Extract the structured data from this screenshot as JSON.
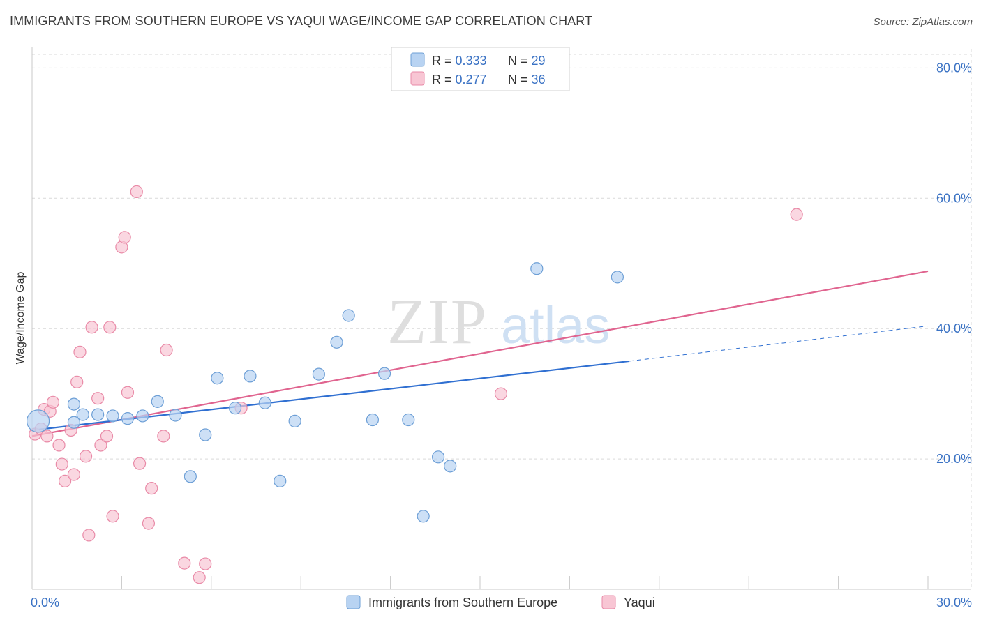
{
  "header": {
    "title": "IMMIGRANTS FROM SOUTHERN EUROPE VS YAQUI WAGE/INCOME GAP CORRELATION CHART",
    "source": "Source: ZipAtlas.com"
  },
  "watermark": {
    "zip": "ZIP",
    "atlas": "atlas"
  },
  "colors": {
    "blue_fill": "#b8d3f2",
    "blue_stroke": "#6d9fd6",
    "blue_line": "#2f6fd1",
    "pink_fill": "#f8c6d4",
    "pink_stroke": "#e98aa7",
    "pink_line": "#e0648f",
    "axis_text": "#3a72c4",
    "grid": "#d9d9d9"
  },
  "legend": {
    "rows": [
      {
        "r_label": "R = ",
        "r_value": "0.333",
        "n_label": "N = ",
        "n_value": "29"
      },
      {
        "r_label": "R = ",
        "r_value": "0.277",
        "n_label": "N = ",
        "n_value": "36"
      }
    ]
  },
  "bottom_legend": [
    "Immigrants from Southern Europe",
    "Yaqui"
  ],
  "chart_data": {
    "type": "scatter",
    "title": "IMMIGRANTS FROM SOUTHERN EUROPE VS YAQUI WAGE/INCOME GAP CORRELATION CHART",
    "xlabel": "",
    "ylabel": "Wage/Income Gap",
    "xlim": [
      0,
      30
    ],
    "ylim": [
      0,
      84
    ],
    "x_tick_labels": [
      "0.0%",
      "30.0%"
    ],
    "y_ticks": [
      20,
      40,
      60,
      80
    ],
    "y_tick_labels": [
      "20.0%",
      "40.0%",
      "60.0%",
      "80.0%"
    ],
    "legend_position": "top-center",
    "series": [
      {
        "name": "Immigrants from Southern Europe",
        "color": "#6d9fd6",
        "points": [
          {
            "x": 0.2,
            "y": 25.8,
            "big": true
          },
          {
            "x": 1.4,
            "y": 28.4
          },
          {
            "x": 1.7,
            "y": 26.8
          },
          {
            "x": 2.2,
            "y": 26.8
          },
          {
            "x": 2.7,
            "y": 26.6
          },
          {
            "x": 3.2,
            "y": 26.2
          },
          {
            "x": 3.7,
            "y": 26.6
          },
          {
            "x": 4.2,
            "y": 28.8
          },
          {
            "x": 4.8,
            "y": 26.7
          },
          {
            "x": 5.3,
            "y": 17.3
          },
          {
            "x": 5.8,
            "y": 23.7
          },
          {
            "x": 6.2,
            "y": 32.4
          },
          {
            "x": 6.8,
            "y": 27.8
          },
          {
            "x": 7.3,
            "y": 32.7
          },
          {
            "x": 7.8,
            "y": 28.6
          },
          {
            "x": 8.3,
            "y": 16.6
          },
          {
            "x": 8.8,
            "y": 25.8
          },
          {
            "x": 9.6,
            "y": 33.0
          },
          {
            "x": 10.2,
            "y": 37.9
          },
          {
            "x": 10.6,
            "y": 42.0
          },
          {
            "x": 11.4,
            "y": 26.0
          },
          {
            "x": 11.8,
            "y": 33.1
          },
          {
            "x": 12.6,
            "y": 26.0
          },
          {
            "x": 13.1,
            "y": 11.2
          },
          {
            "x": 13.6,
            "y": 20.3
          },
          {
            "x": 14.0,
            "y": 18.9
          },
          {
            "x": 16.9,
            "y": 49.2
          },
          {
            "x": 19.6,
            "y": 47.9
          },
          {
            "x": 1.4,
            "y": 25.6
          }
        ],
        "trend": {
          "x0": 0,
          "y0": 24.4,
          "x1": 20.0,
          "y1": 35.0,
          "dash_x1": 30,
          "dash_y1": 40.4
        }
      },
      {
        "name": "Yaqui",
        "color": "#e98aa7",
        "points": [
          {
            "x": 0.1,
            "y": 23.8
          },
          {
            "x": 0.3,
            "y": 24.6
          },
          {
            "x": 0.4,
            "y": 27.6
          },
          {
            "x": 0.5,
            "y": 23.5
          },
          {
            "x": 0.6,
            "y": 27.3
          },
          {
            "x": 0.7,
            "y": 28.7
          },
          {
            "x": 0.9,
            "y": 22.1
          },
          {
            "x": 1.0,
            "y": 19.2
          },
          {
            "x": 1.1,
            "y": 16.6
          },
          {
            "x": 1.3,
            "y": 24.4
          },
          {
            "x": 1.4,
            "y": 17.6
          },
          {
            "x": 1.5,
            "y": 31.8
          },
          {
            "x": 1.6,
            "y": 36.4
          },
          {
            "x": 1.8,
            "y": 20.4
          },
          {
            "x": 1.9,
            "y": 8.3
          },
          {
            "x": 2.0,
            "y": 40.2
          },
          {
            "x": 2.2,
            "y": 29.3
          },
          {
            "x": 2.3,
            "y": 22.1
          },
          {
            "x": 2.5,
            "y": 23.5
          },
          {
            "x": 2.6,
            "y": 40.2
          },
          {
            "x": 2.7,
            "y": 11.2
          },
          {
            "x": 3.0,
            "y": 52.5
          },
          {
            "x": 3.1,
            "y": 54.0
          },
          {
            "x": 3.2,
            "y": 30.2
          },
          {
            "x": 3.5,
            "y": 61.0
          },
          {
            "x": 3.6,
            "y": 19.3
          },
          {
            "x": 3.9,
            "y": 10.1
          },
          {
            "x": 4.0,
            "y": 15.5
          },
          {
            "x": 4.4,
            "y": 23.5
          },
          {
            "x": 4.5,
            "y": 36.7
          },
          {
            "x": 5.1,
            "y": 4.0
          },
          {
            "x": 5.6,
            "y": 1.8
          },
          {
            "x": 5.8,
            "y": 3.9
          },
          {
            "x": 7.0,
            "y": 27.8
          },
          {
            "x": 15.7,
            "y": 30.0
          },
          {
            "x": 25.6,
            "y": 57.5
          }
        ],
        "trend": {
          "x0": 0,
          "y0": 23.5,
          "x1": 30,
          "y1": 48.8
        }
      }
    ]
  }
}
